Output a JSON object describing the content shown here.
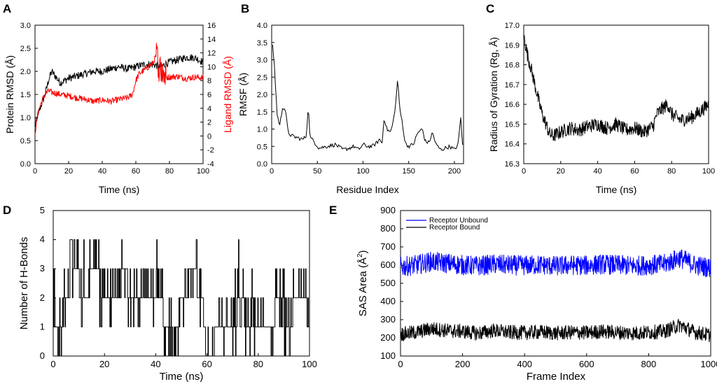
{
  "figure": {
    "panel_labels": [
      "A",
      "B",
      "C",
      "D",
      "E"
    ]
  },
  "chart_data": [
    {
      "panel": "A",
      "type": "line",
      "xlabel": "Time (ns)",
      "ylabel": "Protein RMSD (Å)",
      "y2label": "Ligand RMSD (Å)",
      "xlim": [
        0,
        100
      ],
      "ylim": [
        0,
        3.0
      ],
      "y2lim": [
        -4,
        16
      ],
      "xticks": [
        "0",
        "20",
        "40",
        "60",
        "80",
        "100"
      ],
      "yticks": [
        "0.0",
        "0.5",
        "1.0",
        "1.5",
        "2.0",
        "2.5",
        "3.0"
      ],
      "y2ticks": [
        "-4",
        "-2",
        "0",
        "2",
        "4",
        "6",
        "8",
        "10",
        "12",
        "14",
        "16"
      ],
      "series": [
        {
          "name": "Protein RMSD",
          "color": "#000000",
          "axis": "left",
          "x": [
            0,
            2,
            4,
            6,
            8,
            10,
            12,
            15,
            20,
            25,
            30,
            35,
            40,
            45,
            50,
            55,
            60,
            65,
            70,
            75,
            80,
            85,
            90,
            95,
            100
          ],
          "y": [
            0.8,
            1.1,
            1.3,
            1.5,
            1.8,
            2.0,
            1.9,
            1.75,
            1.85,
            1.9,
            1.95,
            2.0,
            2.0,
            2.05,
            2.1,
            2.05,
            2.1,
            2.15,
            2.15,
            2.1,
            2.2,
            2.25,
            2.3,
            2.3,
            2.2
          ]
        },
        {
          "name": "Ligand RMSD",
          "color": "#ff0000",
          "axis": "right",
          "x": [
            0,
            2,
            4,
            6,
            8,
            10,
            15,
            20,
            25,
            30,
            35,
            40,
            45,
            50,
            55,
            58,
            60,
            62,
            65,
            70,
            72,
            74,
            76,
            78,
            80,
            85,
            90,
            95,
            100
          ],
          "y": [
            0.5,
            3.5,
            5.0,
            6.0,
            6.5,
            6.3,
            6.0,
            5.8,
            5.5,
            5.3,
            5.0,
            5.2,
            5.0,
            5.3,
            5.5,
            6.0,
            8.0,
            9.0,
            9.5,
            10.5,
            11.5,
            10.0,
            9.5,
            8.5,
            8.5,
            8.6,
            8.3,
            8.5,
            8.4
          ]
        }
      ]
    },
    {
      "panel": "B",
      "type": "line",
      "xlabel": "Residue Index",
      "ylabel": "RMSF (Å)",
      "xlim": [
        0,
        210
      ],
      "ylim": [
        0,
        4.0
      ],
      "xticks": [
        "0",
        "50",
        "100",
        "150",
        "200"
      ],
      "yticks": [
        "0.0",
        "0.5",
        "1.0",
        "1.5",
        "2.0",
        "2.5",
        "3.0",
        "3.5",
        "4.0"
      ],
      "series": [
        {
          "name": "RMSF",
          "color": "#000000",
          "x": [
            1,
            3,
            6,
            9,
            12,
            15,
            18,
            22,
            28,
            34,
            38,
            40,
            42,
            46,
            52,
            60,
            70,
            78,
            85,
            90,
            95,
            100,
            105,
            110,
            115,
            118,
            121,
            123,
            126,
            130,
            133,
            136,
            138,
            140,
            143,
            146,
            150,
            155,
            160,
            165,
            168,
            172,
            176,
            180,
            185,
            190,
            195,
            200,
            204,
            207,
            209
          ],
          "y": [
            3.45,
            2.8,
            1.4,
            1.1,
            1.65,
            1.55,
            0.9,
            0.8,
            0.75,
            0.7,
            0.8,
            1.7,
            0.75,
            0.65,
            0.45,
            0.5,
            0.55,
            0.4,
            0.45,
            0.5,
            0.4,
            0.55,
            0.5,
            0.5,
            0.6,
            0.7,
            0.6,
            1.35,
            1.0,
            0.9,
            1.2,
            1.8,
            2.5,
            1.6,
            1.2,
            0.6,
            0.5,
            0.55,
            0.9,
            1.0,
            0.65,
            0.6,
            0.9,
            0.55,
            0.4,
            0.45,
            0.5,
            0.4,
            0.55,
            1.35,
            0.5
          ]
        }
      ]
    },
    {
      "panel": "C",
      "type": "line",
      "xlabel": "Time (ns)",
      "ylabel": "Radius of Gyration (Rg, Å)",
      "xlim": [
        0,
        100
      ],
      "ylim": [
        16.3,
        17.0
      ],
      "xticks": [
        "0",
        "20",
        "40",
        "60",
        "80",
        "100"
      ],
      "yticks": [
        "16.3",
        "16.4",
        "16.5",
        "16.6",
        "16.7",
        "16.8",
        "16.9",
        "17.0"
      ],
      "series": [
        {
          "name": "Rg",
          "color": "#000000",
          "x": [
            0,
            2,
            4,
            6,
            8,
            10,
            12,
            14,
            16,
            20,
            25,
            30,
            35,
            40,
            45,
            50,
            55,
            60,
            65,
            70,
            72,
            75,
            78,
            80,
            85,
            90,
            95,
            100
          ],
          "y": [
            16.95,
            16.85,
            16.78,
            16.7,
            16.62,
            16.55,
            16.5,
            16.45,
            16.44,
            16.46,
            16.48,
            16.47,
            16.49,
            16.5,
            16.48,
            16.5,
            16.47,
            16.48,
            16.46,
            16.49,
            16.55,
            16.58,
            16.6,
            16.55,
            16.52,
            16.53,
            16.56,
            16.6
          ]
        }
      ]
    },
    {
      "panel": "D",
      "type": "line",
      "xlabel": "Time (ns)",
      "ylabel": "Number of H-Bonds",
      "xlim": [
        0,
        100
      ],
      "ylim": [
        0,
        5
      ],
      "xticks": [
        "0",
        "20",
        "40",
        "60",
        "80",
        "100"
      ],
      "yticks": [
        "0",
        "1",
        "2",
        "3",
        "4",
        "5"
      ],
      "series": [
        {
          "name": "H-Bonds",
          "color": "#000000",
          "x": [
            0,
            2,
            3,
            5,
            8,
            12,
            16,
            20,
            25,
            28,
            30,
            35,
            40,
            45,
            47,
            48,
            50,
            55,
            57,
            58,
            59,
            60,
            62,
            64,
            66,
            70,
            73,
            76,
            78,
            80,
            85,
            88,
            92,
            95,
            98,
            100
          ],
          "y": [
            2,
            0,
            1,
            2,
            3,
            2,
            3,
            2,
            2,
            3,
            2,
            2,
            2,
            1,
            0,
            1,
            2,
            3,
            2,
            2,
            1,
            0,
            0,
            1,
            1,
            1,
            2,
            1,
            1,
            1,
            1,
            2,
            1,
            2,
            2,
            1
          ]
        }
      ]
    },
    {
      "panel": "E",
      "type": "line",
      "xlabel": "Frame Index",
      "ylabel": "SAS Area (Å²)",
      "ylabel_main": "SAS Area (Å",
      "ylabel_sup": "2",
      "ylabel_end": ")",
      "xlim": [
        0,
        1000
      ],
      "ylim": [
        100,
        900
      ],
      "xticks": [
        "0",
        "200",
        "400",
        "600",
        "800",
        "1000"
      ],
      "yticks": [
        "100",
        "200",
        "300",
        "400",
        "500",
        "600",
        "700",
        "800",
        "900"
      ],
      "legend": [
        "Receptor Unbound",
        "Receptor Bound"
      ],
      "legend_position": "top-left",
      "series": [
        {
          "name": "Receptor Unbound",
          "color": "#0000ff",
          "x": [
            0,
            50,
            100,
            150,
            200,
            250,
            300,
            350,
            400,
            450,
            500,
            550,
            600,
            650,
            700,
            750,
            800,
            850,
            900,
            950,
            1000
          ],
          "y": [
            590,
            600,
            620,
            610,
            600,
            595,
            605,
            600,
            598,
            602,
            595,
            600,
            598,
            605,
            600,
            596,
            600,
            605,
            640,
            600,
            585
          ]
        },
        {
          "name": "Receptor Bound",
          "color": "#000000",
          "x": [
            0,
            50,
            100,
            150,
            200,
            250,
            300,
            350,
            400,
            450,
            500,
            550,
            600,
            650,
            700,
            750,
            800,
            850,
            900,
            950,
            1000
          ],
          "y": [
            220,
            230,
            250,
            240,
            235,
            225,
            240,
            230,
            228,
            232,
            225,
            230,
            228,
            235,
            230,
            226,
            230,
            235,
            270,
            230,
            215
          ]
        }
      ]
    }
  ]
}
